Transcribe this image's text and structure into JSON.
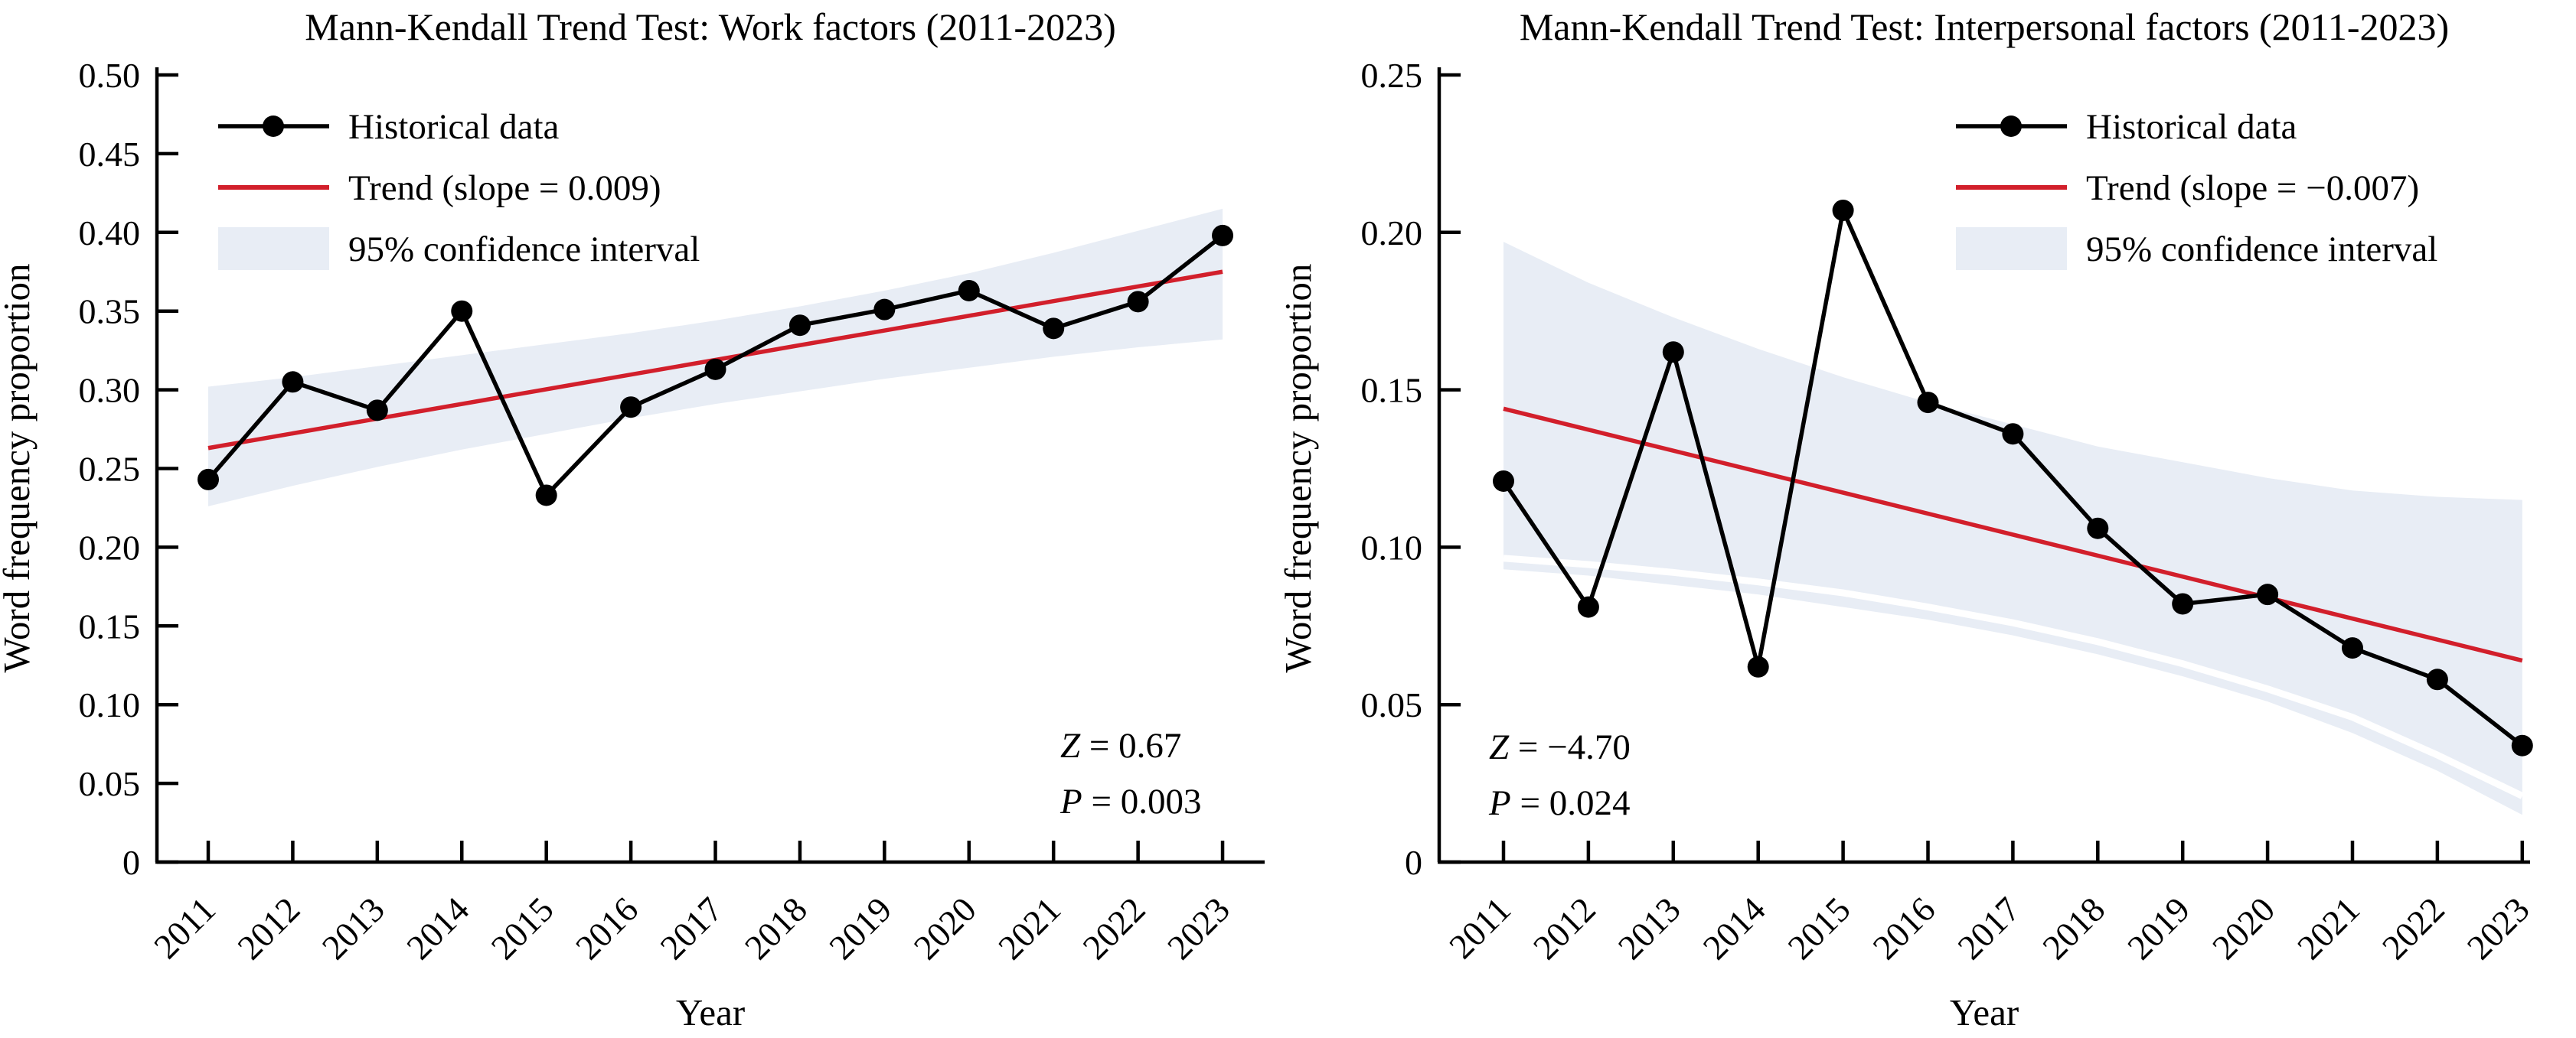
{
  "figure": {
    "x_axis_label": "Year",
    "y_axis_label": "Word frequency proportion",
    "colors": {
      "data_line": "#000000",
      "trend_line": "#d21f2b",
      "band": "#e8edf5",
      "band_gap": "#ffffff",
      "axis": "#000000"
    }
  },
  "chart_data": [
    {
      "type": "line",
      "title": "Mann-Kendall Trend Test: Work factors (2011-2023)",
      "xlabel": "Year",
      "ylabel": "Word frequency proportion",
      "x": [
        2011,
        2012,
        2013,
        2014,
        2015,
        2016,
        2017,
        2018,
        2019,
        2020,
        2021,
        2022,
        2023
      ],
      "x_tick_labels": [
        "2011",
        "2012",
        "2013",
        "2014",
        "2015",
        "2016",
        "2017",
        "2018",
        "2019",
        "2020",
        "2021",
        "2022",
        "2023"
      ],
      "ylim": [
        0,
        0.5
      ],
      "y_tick_values": [
        0.5,
        0.45,
        0.4,
        0.35,
        0.3,
        0.25,
        0.2,
        0.15,
        0.1,
        0.05,
        0
      ],
      "y_tick_labels": [
        "0.50",
        "0.45",
        "0.40",
        "0.35",
        "0.30",
        "0.25",
        "0.20",
        "0.15",
        "0.10",
        "0.05",
        "0"
      ],
      "grid": false,
      "legend_position": "upper-left",
      "series": [
        {
          "name": "Historical data",
          "values": [
            0.243,
            0.305,
            0.287,
            0.35,
            0.233,
            0.289,
            0.313,
            0.341,
            0.351,
            0.363,
            0.339,
            0.356,
            0.398
          ]
        },
        {
          "name": "Trend (slope = 0.009)",
          "slope": 0.009,
          "trend_start": 0.263,
          "trend_end": 0.375
        },
        {
          "name": "95% confidence interval",
          "upper": [
            0.302,
            0.308,
            0.315,
            0.322,
            0.329,
            0.336,
            0.344,
            0.353,
            0.363,
            0.374,
            0.387,
            0.401,
            0.415
          ],
          "lower": [
            0.226,
            0.239,
            0.251,
            0.262,
            0.272,
            0.282,
            0.291,
            0.299,
            0.307,
            0.314,
            0.321,
            0.327,
            0.332
          ]
        }
      ],
      "annotations": {
        "z_var": "Z",
        "z_rest": " = 0.67",
        "p_var": "P",
        "p_rest": " = 0.003"
      }
    },
    {
      "type": "line",
      "title": "Mann-Kendall Trend Test: Interpersonal factors (2011-2023)",
      "xlabel": "Year",
      "ylabel": "Word frequency proportion",
      "x": [
        2011,
        2012,
        2013,
        2014,
        2015,
        2016,
        2017,
        2018,
        2019,
        2020,
        2021,
        2022,
        2023
      ],
      "x_tick_labels": [
        "2011",
        "2012",
        "2013",
        "2014",
        "2015",
        "2016",
        "2017",
        "2018",
        "2019",
        "2020",
        "2021",
        "2022",
        "2023"
      ],
      "ylim": [
        0,
        0.25
      ],
      "y_tick_values": [
        0.25,
        0.2,
        0.15,
        0.1,
        0.05,
        0
      ],
      "y_tick_labels": [
        "0.25",
        "0.20",
        "0.15",
        "0.10",
        "0.05",
        "0"
      ],
      "grid": false,
      "legend_position": "upper-right",
      "series": [
        {
          "name": "Historical data",
          "values": [
            0.121,
            0.081,
            0.162,
            0.062,
            0.207,
            0.146,
            0.136,
            0.106,
            0.082,
            0.085,
            0.068,
            0.058,
            0.037
          ]
        },
        {
          "name": "Trend (slope = −0.007)",
          "slope": -0.007,
          "trend_start": 0.144,
          "trend_end": 0.064
        },
        {
          "name": "95% confidence interval",
          "upper": [
            0.197,
            0.184,
            0.173,
            0.163,
            0.154,
            0.146,
            0.139,
            0.132,
            0.127,
            0.122,
            0.118,
            0.116,
            0.115
          ],
          "lower": [
            0.093,
            0.091,
            0.088,
            0.085,
            0.081,
            0.077,
            0.072,
            0.066,
            0.059,
            0.051,
            0.041,
            0.029,
            0.015
          ],
          "gap_curve": [
            0.0965,
            0.0945,
            0.092,
            0.089,
            0.0855,
            0.081,
            0.076,
            0.07,
            0.063,
            0.055,
            0.046,
            0.034,
            0.021
          ]
        }
      ],
      "annotations": {
        "z_var": "Z",
        "z_rest": " = −4.70",
        "p_var": "P",
        "p_rest": " = 0.024"
      }
    }
  ]
}
